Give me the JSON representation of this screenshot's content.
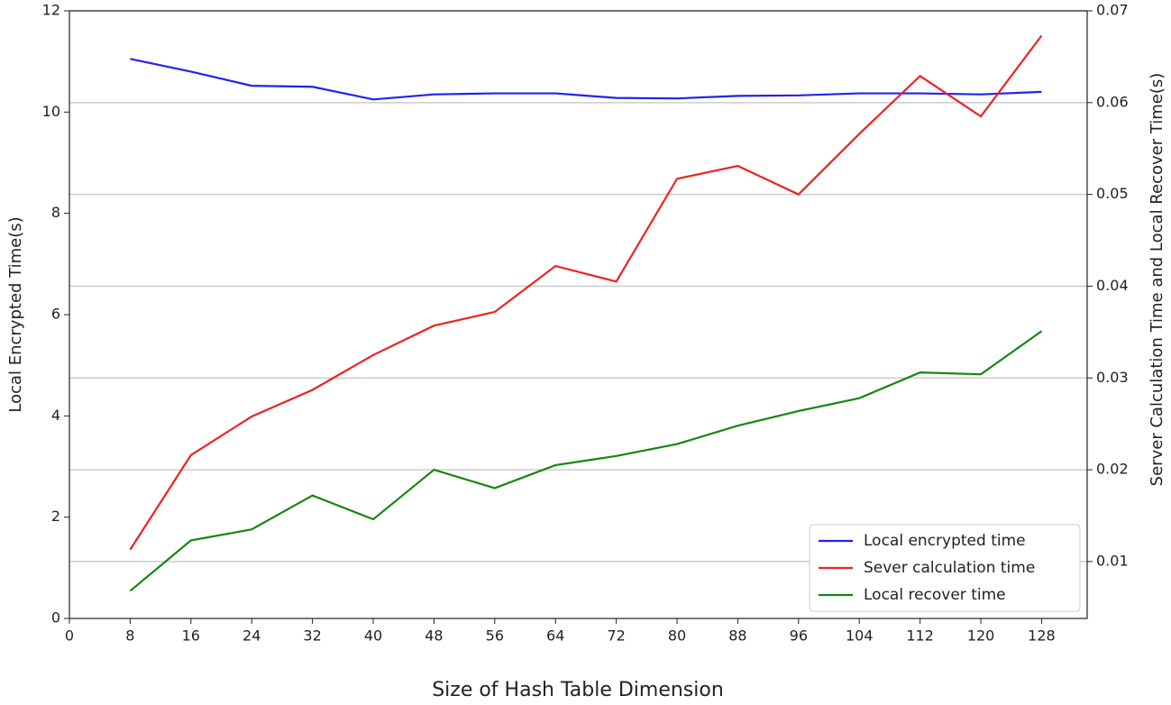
{
  "chart_data": {
    "type": "line",
    "x_label": "Size of Hash Table Dimension",
    "y_label": "Local Encrypted Time(s)",
    "y2_label": "Server Calculation Time and Local Recover Time(s)",
    "x": [
      8,
      16,
      24,
      32,
      40,
      48,
      56,
      64,
      72,
      80,
      88,
      96,
      104,
      112,
      120,
      128
    ],
    "xlim": [
      0,
      134
    ],
    "xticks": [
      0,
      8,
      16,
      24,
      32,
      40,
      48,
      56,
      64,
      72,
      80,
      88,
      96,
      104,
      112,
      120,
      128
    ],
    "ylim": [
      0,
      12
    ],
    "yticks": [
      0,
      2,
      4,
      6,
      8,
      10,
      12
    ],
    "y2lim": [
      0.0038,
      0.07
    ],
    "y2ticks": [
      0.01,
      0.02,
      0.03,
      0.04,
      0.05,
      0.06,
      0.07
    ],
    "grid": "y2",
    "legend": "lower right",
    "series": [
      {
        "name": "Local encrypted time",
        "color": "#2222ee",
        "values": [
          11.05,
          10.8,
          10.52,
          10.5,
          10.25,
          10.35,
          10.37,
          10.37,
          10.28,
          10.27,
          10.32,
          10.33,
          10.37,
          10.37,
          10.35,
          10.4
        ]
      },
      {
        "name": "Sever calculation time",
        "color": "#ee2222",
        "axis": "y2",
        "values": [
          0.0113,
          0.0216,
          0.0258,
          0.0287,
          0.0325,
          0.0357,
          0.0372,
          0.0422,
          0.0405,
          0.0517,
          0.0531,
          0.05,
          0.0566,
          0.0629,
          0.0585,
          0.0673
        ]
      },
      {
        "name": "Local recover time",
        "color": "#118811",
        "axis": "y2",
        "values": [
          0.0068,
          0.0123,
          0.0135,
          0.0172,
          0.0146,
          0.02,
          0.018,
          0.0205,
          0.0215,
          0.0228,
          0.0248,
          0.0264,
          0.0278,
          0.0306,
          0.0304,
          0.0351
        ]
      }
    ]
  }
}
